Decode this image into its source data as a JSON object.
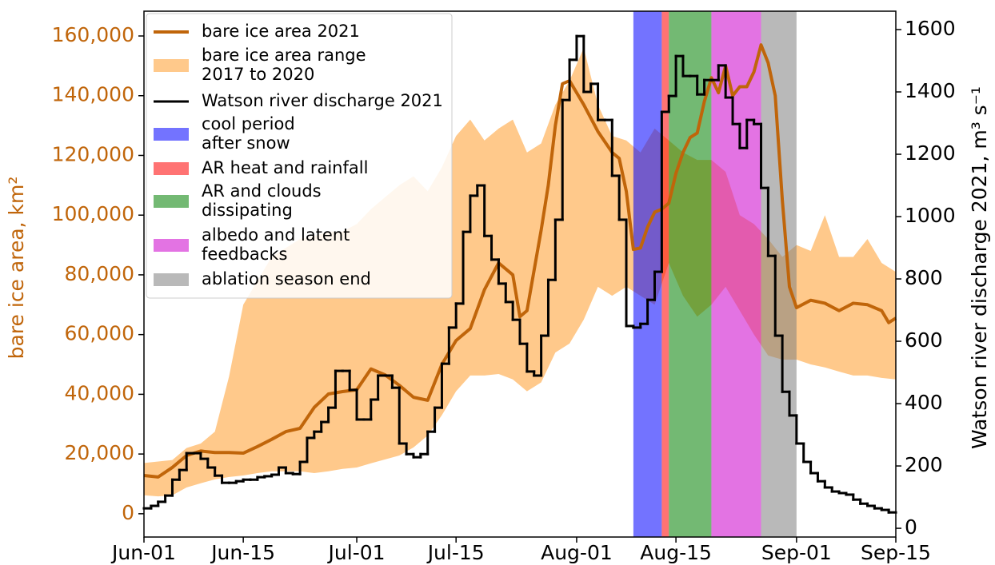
{
  "chart_data": {
    "type": "line",
    "ylabel": "bare ice area, km²",
    "y2label": "Watson river discharge 2021, m³ s⁻¹",
    "y_axis_color": "#c0650a",
    "legend": "upper left",
    "xlim": [
      "Jun-01",
      "Sep-15"
    ],
    "xticks": [
      "Jun-01",
      "Jun-15",
      "Jul-01",
      "Jul-15",
      "Aug-01",
      "Aug-15",
      "Sep-01",
      "Sep-15"
    ],
    "ylim": [
      -7800,
      168300
    ],
    "yticks": [
      0,
      {
        "value": 20000,
        "label": "20,000"
      },
      {
        "value": 40000,
        "label": "40,000"
      },
      {
        "value": 60000,
        "label": "60,000"
      },
      {
        "value": 80000,
        "label": "80,000"
      },
      {
        "value": 100000,
        "label": "100,000"
      },
      {
        "value": 120000,
        "label": "120,000"
      },
      {
        "value": 140000,
        "label": "140,000"
      },
      {
        "value": 160000,
        "label": "160,000"
      }
    ],
    "y2lim": [
      -28,
      1659
    ],
    "y2ticks": [
      0,
      200,
      400,
      600,
      800,
      1000,
      1200,
      1400,
      1600
    ],
    "series": [
      {
        "name": "bare ice area 2021",
        "type": "line",
        "color": "#c0650a",
        "x": [
          "Jun-01",
          "Jun-03",
          "Jun-05",
          "Jun-07",
          "Jun-09",
          "Jun-11",
          "Jun-13",
          "Jun-15",
          "Jun-17",
          "Jun-19",
          "Jun-21",
          "Jun-23",
          "Jun-25",
          "Jun-27",
          "Jun-29",
          "Jul-01",
          "Jul-03",
          "Jul-05",
          "Jul-07",
          "Jul-09",
          "Jul-11",
          "Jul-13",
          "Jul-15",
          "Jul-17",
          "Jul-19",
          "Jul-21",
          "Jul-23",
          "Jul-24",
          "Jul-25",
          "Jul-27",
          "Jul-28",
          "Jul-29",
          "Jul-30",
          "Jul-31",
          "Aug-01",
          "Aug-02",
          "Aug-04",
          "Aug-06",
          "Aug-07",
          "Aug-08",
          "Aug-09",
          "Aug-10",
          "Aug-11",
          "Aug-12",
          "Aug-13",
          "Aug-14",
          "Aug-15",
          "Aug-16",
          "Aug-17",
          "Aug-18",
          "Aug-19",
          "Aug-20",
          "Aug-21",
          "Aug-22",
          "Aug-23",
          "Aug-24",
          "Aug-25",
          "Aug-26",
          "Aug-27",
          "Aug-28",
          "Aug-29",
          "Aug-30",
          "Aug-31",
          "Sep-01",
          "Sep-03",
          "Sep-05",
          "Sep-07",
          "Sep-09",
          "Sep-11",
          "Sep-13",
          "Sep-14",
          "Sep-15"
        ],
        "values": [
          12800,
          12300,
          15500,
          19500,
          21000,
          20500,
          20500,
          20300,
          22500,
          24900,
          27500,
          28600,
          35600,
          40100,
          40900,
          41500,
          48500,
          46500,
          43000,
          39000,
          38000,
          50000,
          58000,
          62000,
          75000,
          84000,
          80000,
          66000,
          68000,
          95000,
          110000,
          130000,
          144000,
          145000,
          141000,
          137000,
          128000,
          121000,
          119000,
          108000,
          88500,
          89000,
          96000,
          101000,
          102000,
          104000,
          114000,
          121000,
          126000,
          127500,
          138000,
          146000,
          141000,
          150000,
          140000,
          143000,
          143000,
          148000,
          157000,
          151000,
          140000,
          105000,
          76000,
          69000,
          71500,
          70500,
          68000,
          70500,
          70000,
          68000,
          64000,
          65500
        ]
      },
      {
        "name": "bare ice area range\n2017 to 2020",
        "type": "range",
        "color": "#ffc98b",
        "x": [
          "Jun-01",
          "Jun-03",
          "Jun-05",
          "Jun-07",
          "Jun-09",
          "Jun-11",
          "Jun-13",
          "Jun-15",
          "Jun-17",
          "Jun-19",
          "Jun-21",
          "Jun-23",
          "Jun-25",
          "Jun-27",
          "Jun-29",
          "Jul-01",
          "Jul-03",
          "Jul-05",
          "Jul-07",
          "Jul-09",
          "Jul-11",
          "Jul-13",
          "Jul-15",
          "Jul-17",
          "Jul-19",
          "Jul-21",
          "Jul-23",
          "Jul-25",
          "Jul-27",
          "Jul-29",
          "Jul-31",
          "Aug-02",
          "Aug-04",
          "Aug-06",
          "Aug-08",
          "Aug-10",
          "Aug-12",
          "Aug-14",
          "Aug-16",
          "Aug-18",
          "Aug-20",
          "Aug-22",
          "Aug-24",
          "Aug-26",
          "Aug-28",
          "Aug-30",
          "Sep-01",
          "Sep-03",
          "Sep-05",
          "Sep-07",
          "Sep-09",
          "Sep-11",
          "Sep-13",
          "Sep-15"
        ],
        "low": [
          6200,
          5800,
          6200,
          8800,
          10200,
          11500,
          12300,
          12800,
          13600,
          14200,
          14200,
          14200,
          13600,
          14200,
          15000,
          15500,
          16900,
          18200,
          19500,
          22200,
          26200,
          33000,
          41000,
          46300,
          46300,
          46800,
          45000,
          41000,
          44000,
          54000,
          57000,
          65000,
          76000,
          73000,
          76000,
          73000,
          70000,
          84000,
          73000,
          66000,
          70000,
          76000,
          68000,
          60000,
          53000,
          51600,
          51600,
          50000,
          49000,
          47600,
          46300,
          46300,
          45500,
          45000
        ],
        "high": [
          17000,
          17500,
          18000,
          22000,
          23500,
          27500,
          46000,
          70000,
          78000,
          86000,
          89000,
          92000,
          93000,
          94500,
          94500,
          97000,
          102000,
          106000,
          110000,
          113000,
          108000,
          116000,
          126500,
          132000,
          125000,
          129000,
          132000,
          121000,
          124000,
          137000,
          145000,
          156000,
          137000,
          126500,
          125000,
          121000,
          129000,
          125000,
          121000,
          118500,
          118500,
          114500,
          100000,
          97000,
          92000,
          86000,
          90000,
          88000,
          100000,
          86000,
          86000,
          92000,
          84000,
          81000
        ]
      },
      {
        "name": "Watson river discharge 2021",
        "type": "step",
        "axis": "y2",
        "color": "#000000",
        "x": [
          "Jun-01",
          "Jun-02",
          "Jun-03",
          "Jun-04",
          "Jun-05",
          "Jun-06",
          "Jun-07",
          "Jun-08",
          "Jun-09",
          "Jun-10",
          "Jun-11",
          "Jun-12",
          "Jun-13",
          "Jun-14",
          "Jun-15",
          "Jun-16",
          "Jun-17",
          "Jun-18",
          "Jun-19",
          "Jun-20",
          "Jun-21",
          "Jun-22",
          "Jun-23",
          "Jun-24",
          "Jun-25",
          "Jun-26",
          "Jun-27",
          "Jun-28",
          "Jun-29",
          "Jun-30",
          "Jul-01",
          "Jul-02",
          "Jul-03",
          "Jul-04",
          "Jul-05",
          "Jul-06",
          "Jul-07",
          "Jul-08",
          "Jul-09",
          "Jul-10",
          "Jul-11",
          "Jul-12",
          "Jul-13",
          "Jul-14",
          "Jul-15",
          "Jul-16",
          "Jul-17",
          "Jul-18",
          "Jul-19",
          "Jul-20",
          "Jul-21",
          "Jul-22",
          "Jul-23",
          "Jul-24",
          "Jul-25",
          "Jul-26",
          "Jul-27",
          "Jul-28",
          "Jul-29",
          "Jul-30",
          "Jul-31",
          "Aug-01",
          "Aug-02",
          "Aug-03",
          "Aug-04",
          "Aug-05",
          "Aug-06",
          "Aug-07",
          "Aug-08",
          "Aug-09",
          "Aug-10",
          "Aug-11",
          "Aug-12",
          "Aug-13",
          "Aug-14",
          "Aug-15",
          "Aug-16",
          "Aug-17",
          "Aug-18",
          "Aug-19",
          "Aug-20",
          "Aug-21",
          "Aug-22",
          "Aug-23",
          "Aug-24",
          "Aug-25",
          "Aug-26",
          "Aug-27",
          "Aug-28",
          "Aug-29",
          "Aug-30",
          "Aug-31",
          "Sep-01",
          "Sep-02",
          "Sep-03",
          "Sep-04",
          "Sep-05",
          "Sep-06",
          "Sep-07",
          "Sep-08",
          "Sep-09",
          "Sep-10",
          "Sep-11",
          "Sep-12",
          "Sep-13",
          "Sep-14"
        ],
        "values": [
          64,
          72,
          85,
          105,
          156,
          187,
          241,
          241,
          223,
          195,
          169,
          146,
          146,
          151,
          156,
          156,
          164,
          167,
          172,
          195,
          177,
          174,
          213,
          290,
          310,
          341,
          387,
          505,
          505,
          444,
          349,
          349,
          413,
          490,
          490,
          451,
          272,
          238,
          228,
          238,
          310,
          387,
          528,
          644,
          721,
          951,
          1067,
          1100,
          938,
          862,
          785,
          726,
          669,
          592,
          503,
          490,
          618,
          797,
          990,
          1374,
          1503,
          1579,
          1400,
          1426,
          1310,
          1310,
          1131,
          990,
          649,
          644,
          656,
          733,
          823,
          1336,
          1387,
          1515,
          1451,
          1451,
          1392,
          1438,
          1438,
          1485,
          1382,
          1297,
          1220,
          1310,
          1297,
          1092,
          874,
          618,
          438,
          362,
          272,
          213,
          177,
          151,
          131,
          118,
          113,
          108,
          92,
          79,
          72,
          64,
          59,
          51
        ]
      }
    ],
    "periods": [
      {
        "name": "cool period\nafter snow",
        "color": "#0000ff",
        "start": "Aug-09",
        "end": "Aug-13"
      },
      {
        "name": "AR heat and rainfall",
        "color": "#ff0000",
        "start": "Aug-13",
        "end": "Aug-14"
      },
      {
        "name": "AR and clouds\ndissipating",
        "color": "#008000",
        "start": "Aug-14",
        "end": "Aug-20"
      },
      {
        "name": "albedo and latent\nfeedbacks",
        "color": "#cc00cc",
        "start": "Aug-20",
        "end": "Aug-27"
      },
      {
        "name": "ablation season end",
        "color": "#808080",
        "start": "Aug-27",
        "end": "Sep-01"
      }
    ]
  }
}
